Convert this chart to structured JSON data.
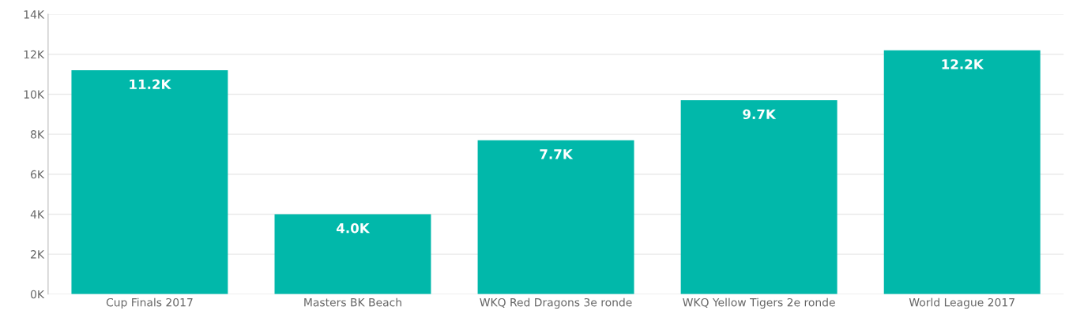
{
  "chart_data": {
    "type": "bar",
    "categories": [
      "Cup Finals 2017",
      "Masters BK Beach",
      "WKQ Red Dragons 3e ronde",
      "WKQ Yellow Tigers 2e ronde",
      "World League 2017"
    ],
    "values": [
      11200,
      4000,
      7700,
      9700,
      12200
    ],
    "value_labels": [
      "11.2K",
      "4.0K",
      "7.7K",
      "9.7K",
      "12.2K"
    ],
    "color": "#01b8aa",
    "ylim": [
      0,
      14000
    ],
    "yticks": [
      {
        "value": 0,
        "label": "0K"
      },
      {
        "value": 2000,
        "label": "2K"
      },
      {
        "value": 4000,
        "label": "4K"
      },
      {
        "value": 6000,
        "label": "6K"
      },
      {
        "value": 8000,
        "label": "8K"
      },
      {
        "value": 10000,
        "label": "10K"
      },
      {
        "value": 12000,
        "label": "12K"
      },
      {
        "value": 14000,
        "label": "14K"
      }
    ],
    "grid": "y"
  }
}
